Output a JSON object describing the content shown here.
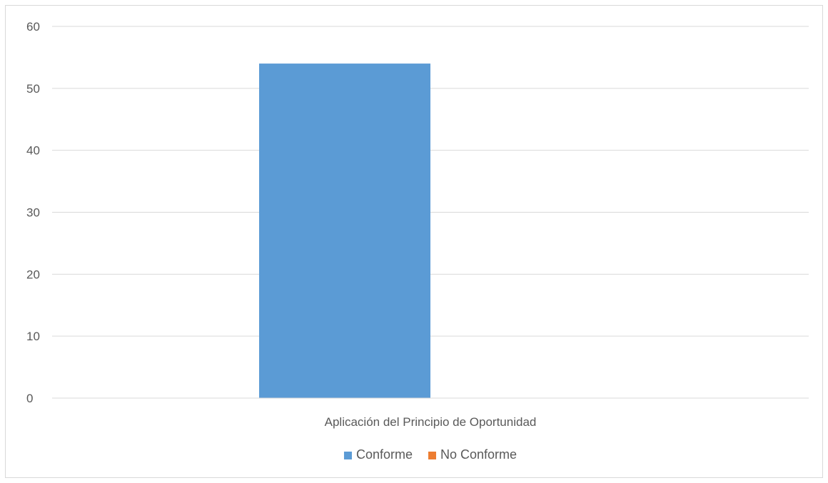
{
  "chart_data": {
    "type": "bar",
    "categories": [
      "Aplicación del Principio de Oportunidad"
    ],
    "series": [
      {
        "name": "Conforme",
        "values": [
          54
        ],
        "color": "#5b9bd5"
      },
      {
        "name": "No Conforme",
        "values": [
          0
        ],
        "color": "#ed7d31"
      }
    ],
    "title": "",
    "xlabel": "",
    "ylabel": "",
    "ylim": [
      0,
      60
    ],
    "yticks": [
      0,
      10,
      20,
      30,
      40,
      50,
      60
    ],
    "grid": true,
    "legend": "bottom"
  }
}
